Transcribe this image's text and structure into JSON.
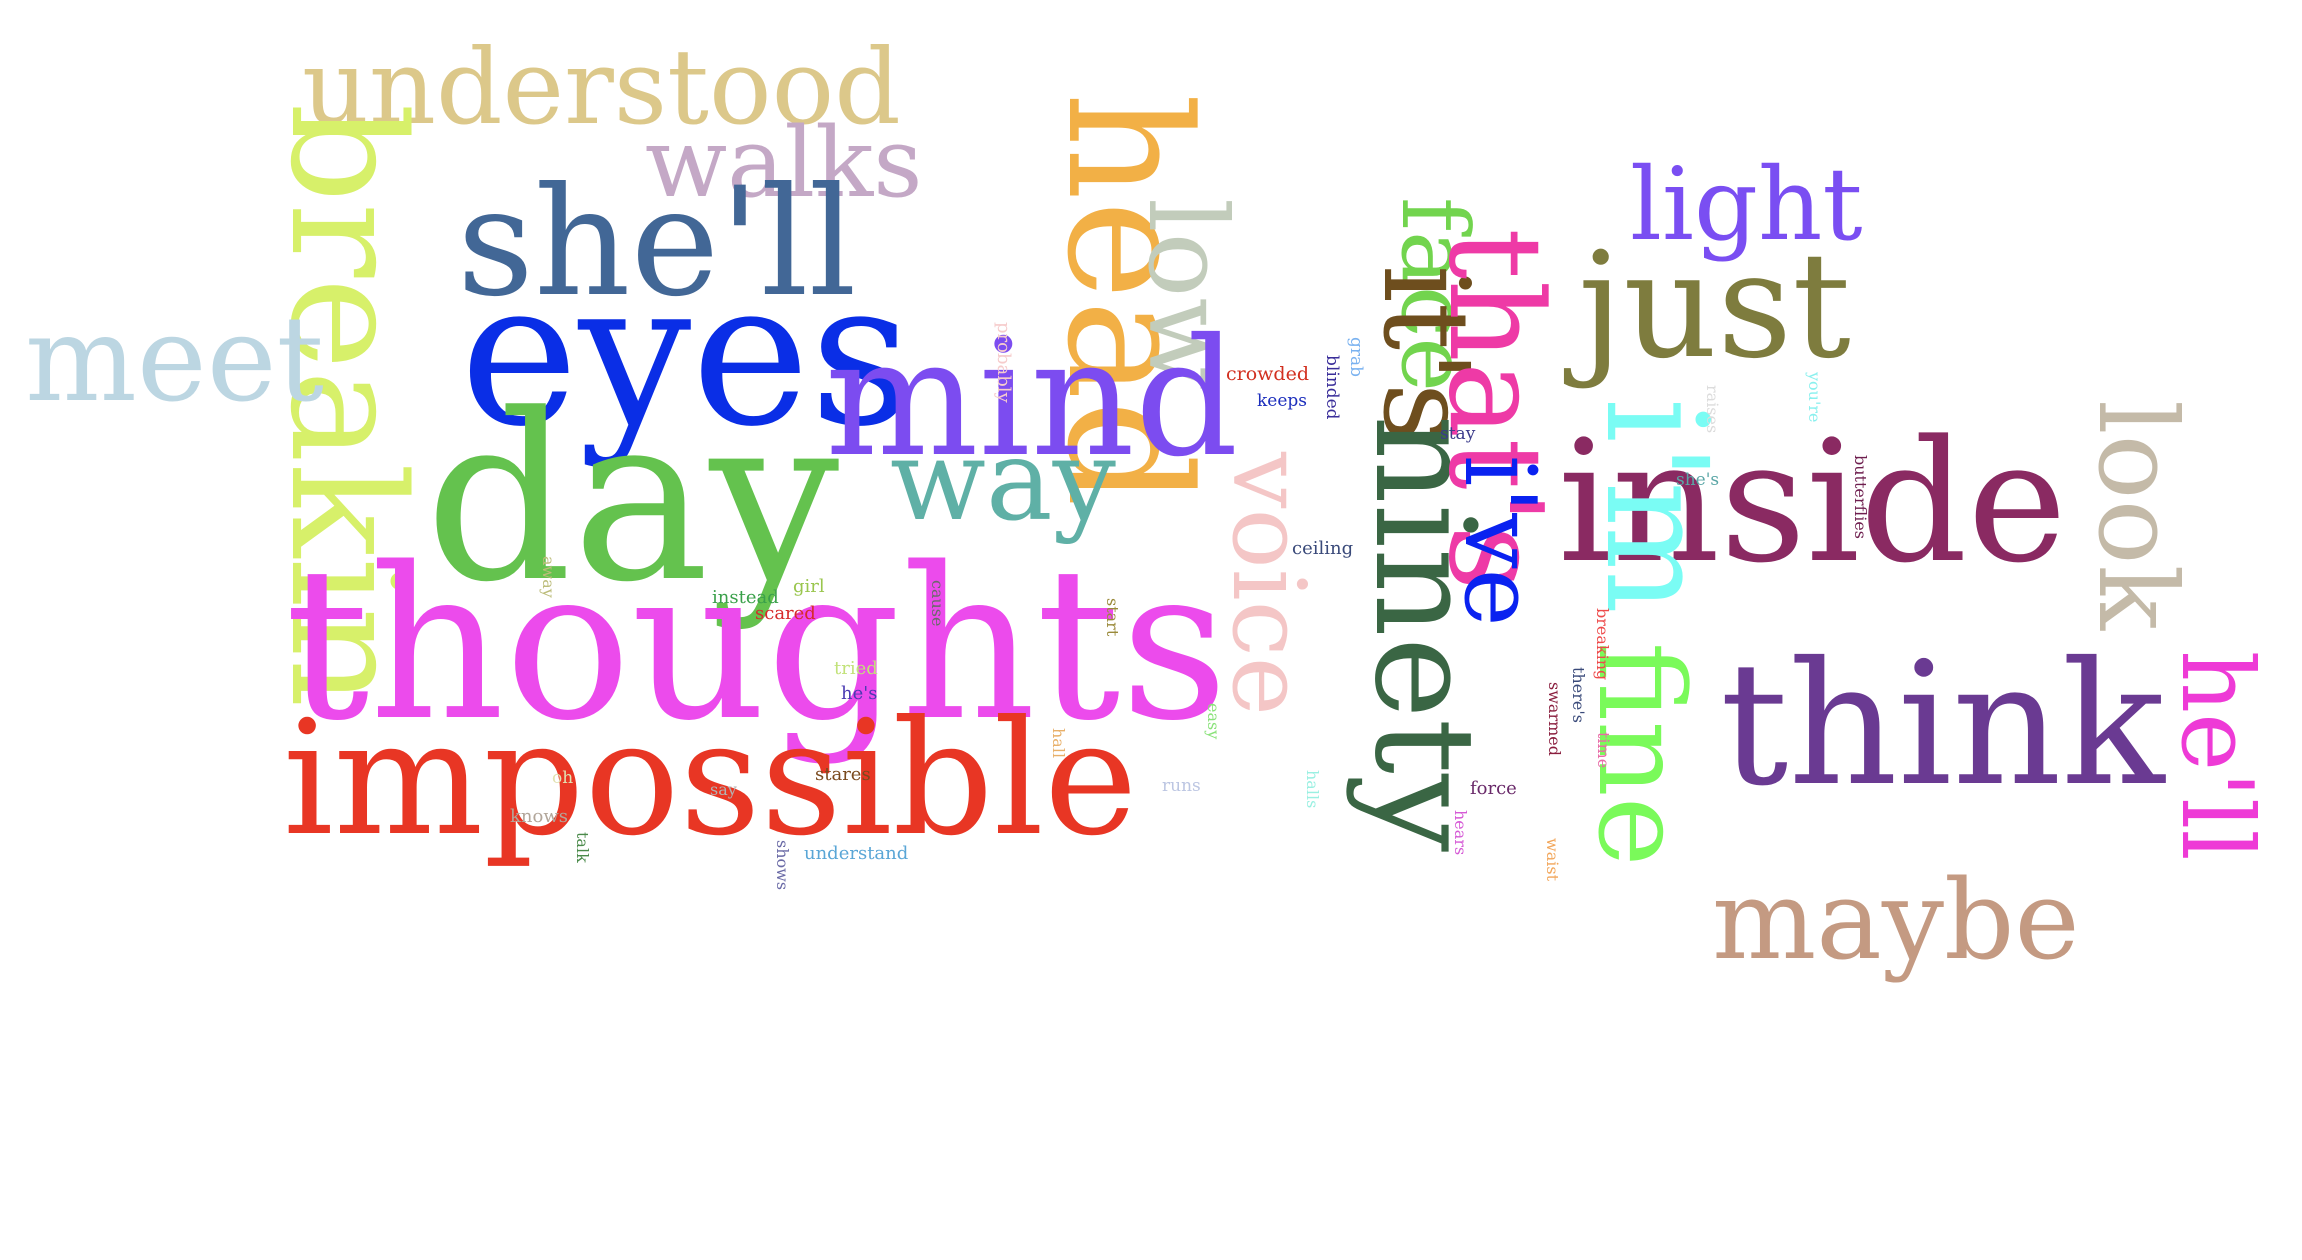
{
  "cloud": {
    "words": [
      {
        "text": "understood",
        "color": "#dcc88a"
      },
      {
        "text": "breakin",
        "color": "#d7f06a"
      },
      {
        "text": "walks",
        "color": "#c4a8c6"
      },
      {
        "text": "she'll",
        "color": "#426796"
      },
      {
        "text": "eyes",
        "color": "#0a2ee6"
      },
      {
        "text": "meet",
        "color": "#bcd6e2"
      },
      {
        "text": "day",
        "color": "#64c24e"
      },
      {
        "text": "thoughts",
        "color": "#ec4bec"
      },
      {
        "text": "impossible",
        "color": "#e83624"
      },
      {
        "text": "head",
        "color": "#f2b046"
      },
      {
        "text": "low",
        "color": "#c2ccbb"
      },
      {
        "text": "mind",
        "color": "#7c4cf0"
      },
      {
        "text": "way",
        "color": "#5fb0a6"
      },
      {
        "text": "voice",
        "color": "#f4c6c6"
      },
      {
        "text": "face",
        "color": "#72d44e"
      },
      {
        "text": "it's",
        "color": "#6e4e1e"
      },
      {
        "text": "ninety",
        "color": "#3a6644"
      },
      {
        "text": "that's",
        "color": "#ee3aa6"
      },
      {
        "text": "i've",
        "color": "#0a22f0"
      },
      {
        "text": "light",
        "color": "#7a4ef2"
      },
      {
        "text": "just",
        "color": "#7e7c3e"
      },
      {
        "text": "inside",
        "color": "#8a2a62"
      },
      {
        "text": "i'm",
        "color": "#7afcf4"
      },
      {
        "text": "fine",
        "color": "#7afa5a"
      },
      {
        "text": "look",
        "color": "#c4baa8"
      },
      {
        "text": "think",
        "color": "#6a3a92"
      },
      {
        "text": "he'll",
        "color": "#ee3ad6"
      },
      {
        "text": "maybe",
        "color": "#c49a82"
      },
      {
        "text": "probably",
        "color": "#f6cccc"
      },
      {
        "text": "crowded",
        "color": "#d23020"
      },
      {
        "text": "keeps",
        "color": "#1c2ebc"
      },
      {
        "text": "grab",
        "color": "#7ab2f0"
      },
      {
        "text": "blinded",
        "color": "#3a2e9a"
      },
      {
        "text": "stay",
        "color": "#3a3a8a"
      },
      {
        "text": "raises",
        "color": "#dcdcdc"
      },
      {
        "text": "you're",
        "color": "#8af0ee"
      },
      {
        "text": "butterflies",
        "color": "#6e1e4e"
      },
      {
        "text": "she's",
        "color": "#5aa6a6"
      },
      {
        "text": "ceiling",
        "color": "#3a4a7a"
      },
      {
        "text": "away",
        "color": "#bcbc7a"
      },
      {
        "text": "girl",
        "color": "#9ac64e"
      },
      {
        "text": "instead",
        "color": "#3aa04a"
      },
      {
        "text": "scared",
        "color": "#d62a2a"
      },
      {
        "text": "cause",
        "color": "#6a6a6a"
      },
      {
        "text": "start",
        "color": "#9a8a3a"
      },
      {
        "text": "tried",
        "color": "#c2e27a"
      },
      {
        "text": "he's",
        "color": "#4a3ab2"
      },
      {
        "text": "hall",
        "color": "#e8b06a"
      },
      {
        "text": "easy",
        "color": "#8ae27a"
      },
      {
        "text": "breaking",
        "color": "#ee4a4a"
      },
      {
        "text": "there's",
        "color": "#3a4a7a"
      },
      {
        "text": "time",
        "color": "#e86aa6"
      },
      {
        "text": "swarmed",
        "color": "#8a1e3e"
      },
      {
        "text": "oh",
        "color": "#e2e2b2"
      },
      {
        "text": "say",
        "color": "#b2b2b2"
      },
      {
        "text": "stares",
        "color": "#7a4a1e"
      },
      {
        "text": "runs",
        "color": "#bcc6e2"
      },
      {
        "text": "halls",
        "color": "#9af0e2"
      },
      {
        "text": "hears",
        "color": "#d65ad6"
      },
      {
        "text": "force",
        "color": "#6a2a6a"
      },
      {
        "text": "waist",
        "color": "#f2a65a"
      },
      {
        "text": "knows",
        "color": "#b2a69a"
      },
      {
        "text": "talk",
        "color": "#4a8a4a"
      },
      {
        "text": "shows",
        "color": "#6a6aa6"
      },
      {
        "text": "understand",
        "color": "#5aa6d6"
      }
    ]
  }
}
